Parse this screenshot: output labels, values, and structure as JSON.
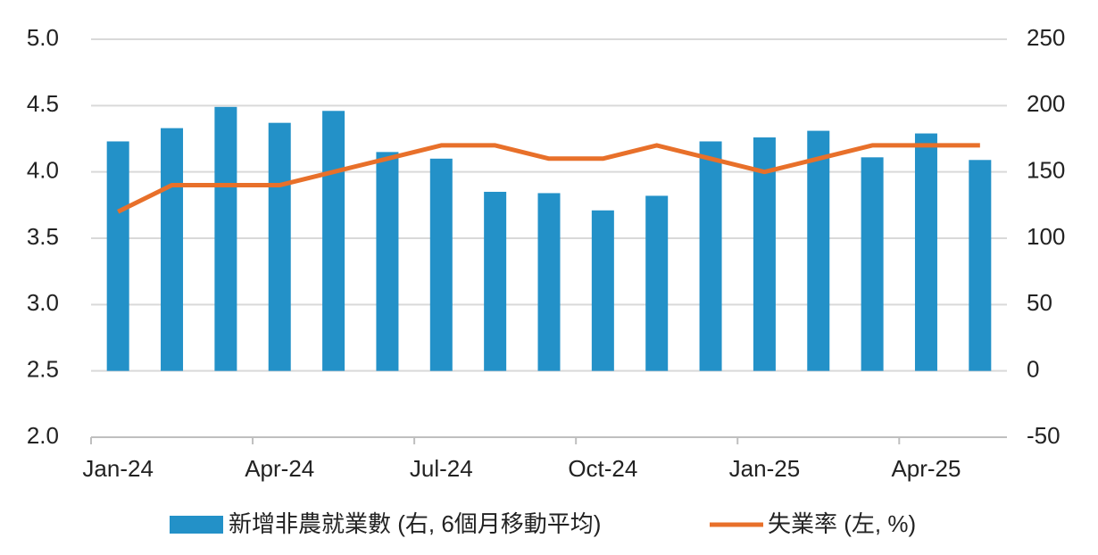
{
  "chart_data": {
    "type": "bar+line",
    "categories": [
      "Jan-24",
      null,
      null,
      "Apr-24",
      null,
      null,
      "Jul-24",
      null,
      null,
      "Oct-24",
      null,
      null,
      "Jan-25",
      null,
      null,
      "Apr-25",
      null
    ],
    "series": [
      {
        "name": "新增非農就業數 (右, 6個月移動平均)",
        "type": "bar",
        "axis": "y2",
        "color": "#2391c8",
        "values": [
          173,
          183,
          199,
          187,
          196,
          165,
          160,
          135,
          134,
          121,
          132,
          173,
          176,
          181,
          161,
          179,
          159
        ]
      },
      {
        "name": "失業率 (左, %)",
        "type": "line",
        "axis": "y",
        "color": "#e8702a",
        "values": [
          3.7,
          3.9,
          3.9,
          3.9,
          4.0,
          4.1,
          4.2,
          4.2,
          4.1,
          4.1,
          4.2,
          4.1,
          4.0,
          4.1,
          4.2,
          4.2,
          4.2
        ]
      }
    ],
    "ylim": [
      2.0,
      5.0
    ],
    "yticks": [
      {
        "value": 2,
        "label": "2.0"
      },
      2.5,
      {
        "value": 3,
        "label": "3.0"
      },
      3.5,
      {
        "value": 4,
        "label": "4.0"
      },
      4.5,
      {
        "value": 5,
        "label": "5.0"
      }
    ],
    "y2lim": [
      -50,
      250
    ],
    "y2ticks": [
      -50,
      0,
      50,
      100,
      150,
      200,
      250
    ],
    "grid": true,
    "legend": "bottom"
  }
}
